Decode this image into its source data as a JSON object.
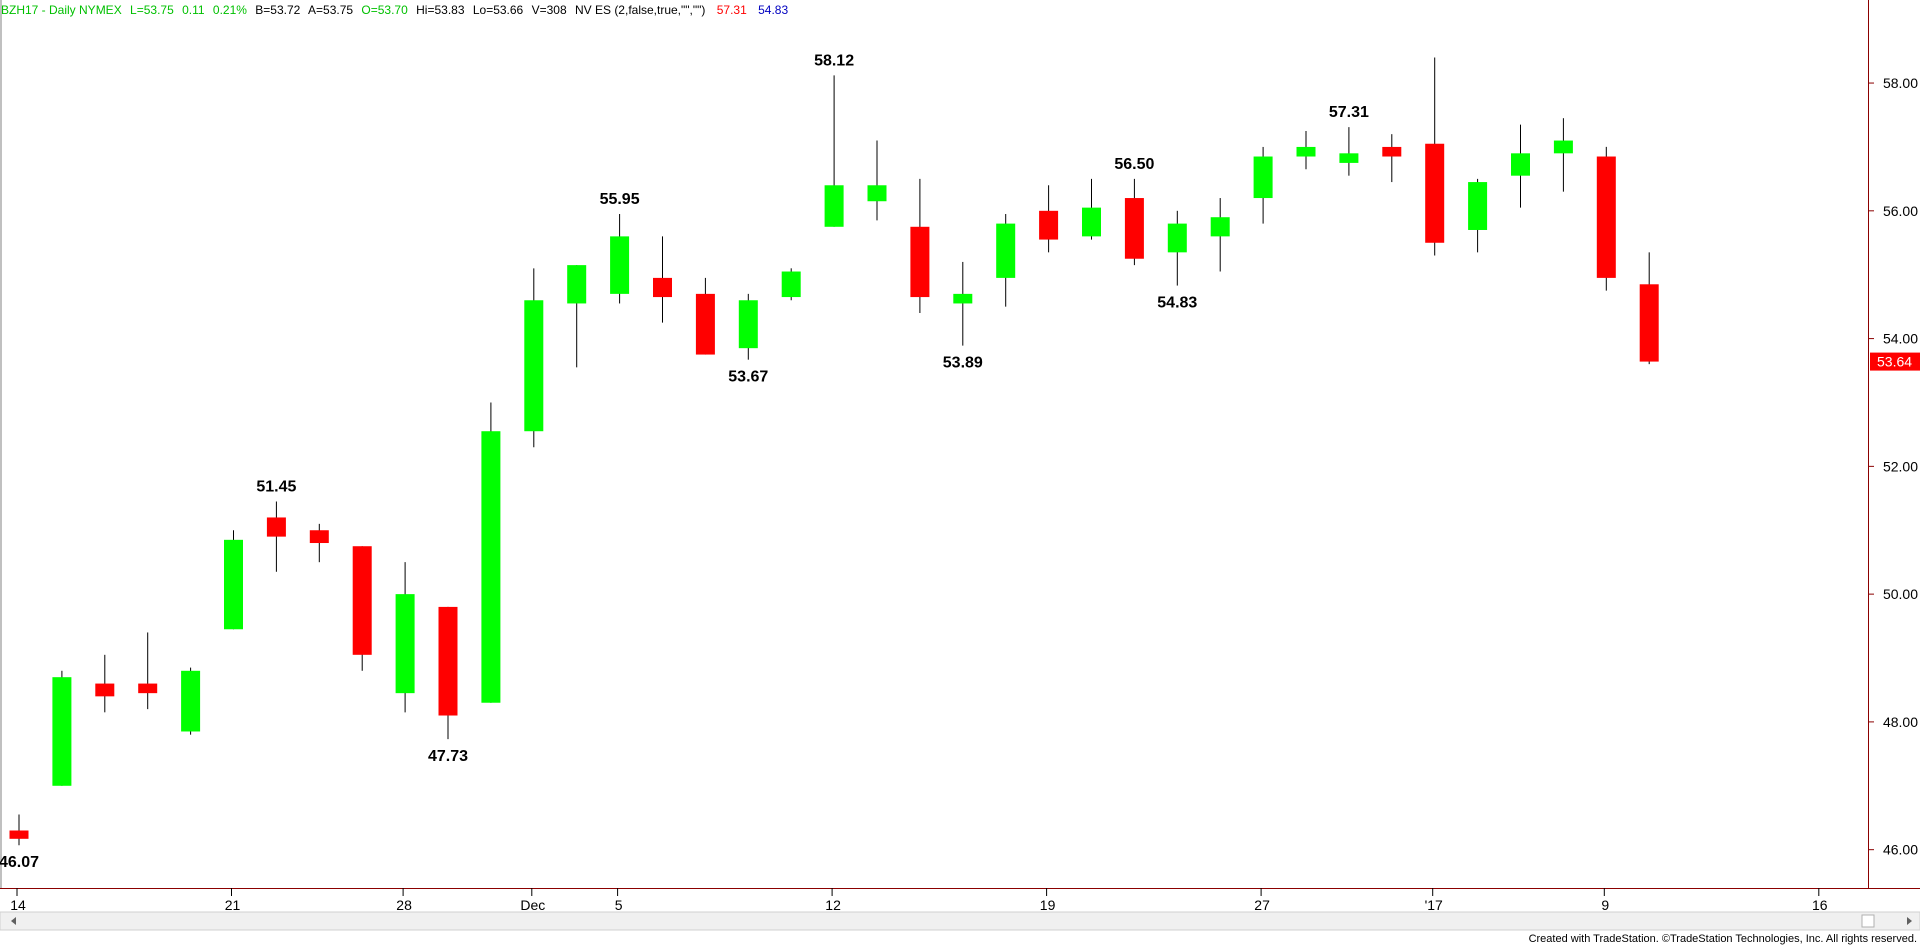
{
  "header": {
    "symbol_line": "BZH17 - Daily  NYMEX",
    "last": "L=53.75",
    "change": "0.11",
    "change_pct": "0.21%",
    "bid": "B=53.72",
    "ask": "A=53.75",
    "open": "O=53.70",
    "high": "Hi=53.83",
    "low": "Lo=53.66",
    "volume": "V=308",
    "indicator": "NV ES (2,false,true,\"\",\"\")",
    "ind_value_1": "57.31",
    "ind_value_2": "54.83"
  },
  "footer": {
    "credit": "Created with TradeStation. ©TradeStation Technologies, Inc. All rights reserved."
  },
  "colors": {
    "up": "#00ff00",
    "down": "#ff0000",
    "wick": "#000000",
    "header_green": "#00c000",
    "header_red": "#ff0000",
    "header_blue": "#0000c0",
    "axis": "#8b0000",
    "last_price_bg": "#ff0000"
  },
  "chart_data": {
    "type": "candlestick",
    "ylim": [
      45.4,
      59.3
    ],
    "y_ticks": [
      "46.00",
      "48.00",
      "50.00",
      "52.00",
      "54.00",
      "56.00",
      "58.00"
    ],
    "x_tick_labels": [
      {
        "label": "14",
        "bar": 0
      },
      {
        "label": "21",
        "bar": 5
      },
      {
        "label": "28",
        "bar": 9
      },
      {
        "label": "Dec",
        "bar": 12
      },
      {
        "label": "5",
        "bar": 14
      },
      {
        "label": "12",
        "bar": 19
      },
      {
        "label": "19",
        "bar": 24
      },
      {
        "label": "27",
        "bar": 29
      },
      {
        "label": "'17",
        "bar": 33
      },
      {
        "label": "9",
        "bar": 37
      },
      {
        "label": "16",
        "bar": 42
      }
    ],
    "last_price": "53.64",
    "candles": [
      {
        "o": 46.3,
        "h": 46.55,
        "l": 46.07,
        "c": 46.17
      },
      {
        "o": 47.0,
        "h": 48.8,
        "l": 47.0,
        "c": 48.7
      },
      {
        "o": 48.6,
        "h": 49.05,
        "l": 48.15,
        "c": 48.4
      },
      {
        "o": 48.6,
        "h": 49.4,
        "l": 48.2,
        "c": 48.45
      },
      {
        "o": 47.85,
        "h": 48.85,
        "l": 47.8,
        "c": 48.8
      },
      {
        "o": 49.45,
        "h": 51.0,
        "l": 49.45,
        "c": 50.85
      },
      {
        "o": 51.2,
        "h": 51.45,
        "l": 50.35,
        "c": 50.9
      },
      {
        "o": 51.0,
        "h": 51.1,
        "l": 50.5,
        "c": 50.8
      },
      {
        "o": 50.75,
        "h": 50.75,
        "l": 48.8,
        "c": 49.05
      },
      {
        "o": 48.45,
        "h": 50.5,
        "l": 48.15,
        "c": 50.0
      },
      {
        "o": 49.8,
        "h": 49.8,
        "l": 47.73,
        "c": 48.1
      },
      {
        "o": 48.3,
        "h": 53.0,
        "l": 48.3,
        "c": 52.55
      },
      {
        "o": 52.55,
        "h": 55.1,
        "l": 52.3,
        "c": 54.6
      },
      {
        "o": 54.55,
        "h": 55.15,
        "l": 53.55,
        "c": 55.15
      },
      {
        "o": 54.7,
        "h": 55.95,
        "l": 54.55,
        "c": 55.6
      },
      {
        "o": 54.95,
        "h": 55.6,
        "l": 54.25,
        "c": 54.65
      },
      {
        "o": 54.7,
        "h": 54.95,
        "l": 53.75,
        "c": 53.75
      },
      {
        "o": 53.85,
        "h": 54.7,
        "l": 53.67,
        "c": 54.6
      },
      {
        "o": 54.65,
        "h": 55.1,
        "l": 54.6,
        "c": 55.05
      },
      {
        "o": 55.75,
        "h": 58.12,
        "l": 55.75,
        "c": 56.4
      },
      {
        "o": 56.15,
        "h": 57.1,
        "l": 55.85,
        "c": 56.4
      },
      {
        "o": 55.75,
        "h": 56.5,
        "l": 54.4,
        "c": 54.65
      },
      {
        "o": 54.55,
        "h": 55.2,
        "l": 53.89,
        "c": 54.7
      },
      {
        "o": 54.95,
        "h": 55.95,
        "l": 54.5,
        "c": 55.8
      },
      {
        "o": 56.0,
        "h": 56.4,
        "l": 55.35,
        "c": 55.55
      },
      {
        "o": 55.6,
        "h": 56.5,
        "l": 55.55,
        "c": 56.05
      },
      {
        "o": 56.2,
        "h": 56.5,
        "l": 55.15,
        "c": 55.25
      },
      {
        "o": 55.35,
        "h": 56.0,
        "l": 54.83,
        "c": 55.8
      },
      {
        "o": 55.6,
        "h": 56.2,
        "l": 55.05,
        "c": 55.9
      },
      {
        "o": 56.2,
        "h": 57.0,
        "l": 55.8,
        "c": 56.85
      },
      {
        "o": 56.85,
        "h": 57.25,
        "l": 56.65,
        "c": 57.0
      },
      {
        "o": 56.75,
        "h": 57.31,
        "l": 56.55,
        "c": 56.9
      },
      {
        "o": 57.0,
        "h": 57.2,
        "l": 56.45,
        "c": 56.85
      },
      {
        "o": 57.05,
        "h": 58.4,
        "l": 55.3,
        "c": 55.5
      },
      {
        "o": 55.7,
        "h": 56.5,
        "l": 55.35,
        "c": 56.45
      },
      {
        "o": 56.55,
        "h": 57.35,
        "l": 56.05,
        "c": 56.9
      },
      {
        "o": 56.9,
        "h": 57.45,
        "l": 56.3,
        "c": 57.1
      },
      {
        "o": 56.85,
        "h": 57.0,
        "l": 54.75,
        "c": 54.95
      },
      {
        "o": 54.85,
        "h": 55.35,
        "l": 53.6,
        "c": 53.64
      }
    ],
    "annotations": [
      {
        "text": "46.07",
        "bar": 0,
        "value": 46.07,
        "pos": "below"
      },
      {
        "text": "51.45",
        "bar": 6,
        "value": 51.45,
        "pos": "above"
      },
      {
        "text": "47.73",
        "bar": 10,
        "value": 47.73,
        "pos": "below"
      },
      {
        "text": "55.95",
        "bar": 14,
        "value": 55.95,
        "pos": "above"
      },
      {
        "text": "53.67",
        "bar": 17,
        "value": 53.67,
        "pos": "below"
      },
      {
        "text": "58.12",
        "bar": 19,
        "value": 58.12,
        "pos": "above"
      },
      {
        "text": "53.89",
        "bar": 22,
        "value": 53.89,
        "pos": "below"
      },
      {
        "text": "56.50",
        "bar": 26,
        "value": 56.5,
        "pos": "above"
      },
      {
        "text": "54.83",
        "bar": 27,
        "value": 54.83,
        "pos": "below"
      },
      {
        "text": "57.31",
        "bar": 31,
        "value": 57.31,
        "pos": "above"
      }
    ]
  }
}
